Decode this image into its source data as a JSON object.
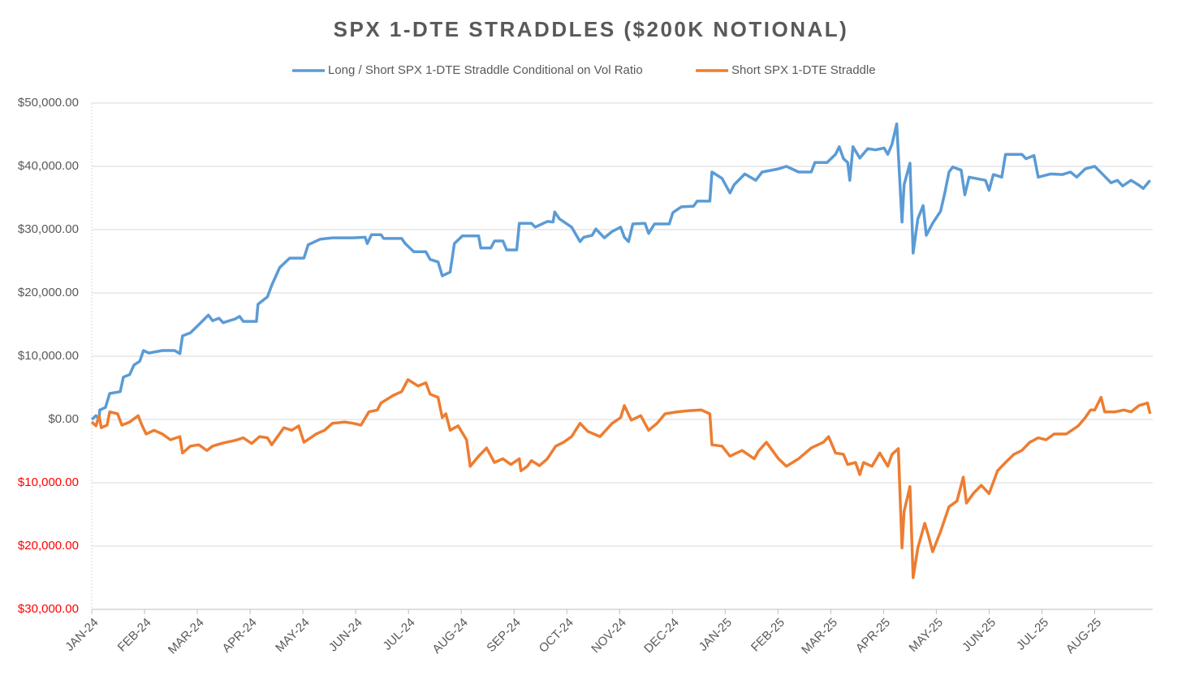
{
  "chart_data": {
    "type": "line",
    "title": "SPX 1-DTE STRADDLES ($200K NOTIONAL)",
    "xlim": [
      0,
      20.1
    ],
    "xticks": [
      {
        "value": 0,
        "label": "JAN-24"
      },
      {
        "value": 1,
        "label": "FEB-24"
      },
      {
        "value": 2,
        "label": "MAR-24"
      },
      {
        "value": 3,
        "label": "APR-24"
      },
      {
        "value": 4,
        "label": "MAY-24"
      },
      {
        "value": 5,
        "label": "JUN-24"
      },
      {
        "value": 6,
        "label": "JUL-24"
      },
      {
        "value": 7,
        "label": "AUG-24"
      },
      {
        "value": 8,
        "label": "SEP-24"
      },
      {
        "value": 9,
        "label": "OCT-24"
      },
      {
        "value": 10,
        "label": "NOV-24"
      },
      {
        "value": 11,
        "label": "DEC-24"
      },
      {
        "value": 12,
        "label": "JAN-25"
      },
      {
        "value": 13,
        "label": "FEB-25"
      },
      {
        "value": 14,
        "label": "MAR-25"
      },
      {
        "value": 15,
        "label": "APR-25"
      },
      {
        "value": 16,
        "label": "MAY-25"
      },
      {
        "value": 17,
        "label": "JUN-25"
      },
      {
        "value": 18,
        "label": "JUL-25"
      },
      {
        "value": 19,
        "label": "AUG-25"
      }
    ],
    "ylim": [
      -30000,
      50000
    ],
    "yticks": [
      {
        "value": 50000,
        "label": "$50,000.00"
      },
      {
        "value": 40000,
        "label": "$40,000.00"
      },
      {
        "value": 30000,
        "label": "$30,000.00"
      },
      {
        "value": 20000,
        "label": "$20,000.00"
      },
      {
        "value": 10000,
        "label": "$10,000.00"
      },
      {
        "value": 0,
        "label": "$0.00"
      },
      {
        "value": -10000,
        "label": "$10,000.00"
      },
      {
        "value": -20000,
        "label": "$20,000.00"
      },
      {
        "value": -30000,
        "label": "$30,000.00"
      }
    ],
    "negative_tick_color": "#ff0000",
    "grid": true,
    "legend": "top",
    "series": [
      {
        "name": "Long / Short SPX 1-DTE Straddle Conditional on Vol Ratio",
        "color": "#5b9bd5",
        "x": [
          0.0,
          0.08,
          0.14,
          0.15,
          0.26,
          0.34,
          0.54,
          0.6,
          0.72,
          0.8,
          0.91,
          0.98,
          1.08,
          1.34,
          1.57,
          1.67,
          1.72,
          1.87,
          2.03,
          2.21,
          2.29,
          2.41,
          2.49,
          2.72,
          2.8,
          2.87,
          3.12,
          3.15,
          3.33,
          3.41,
          3.56,
          3.75,
          4.02,
          4.1,
          4.33,
          4.56,
          4.95,
          5.18,
          5.22,
          5.3,
          5.48,
          5.53,
          5.87,
          5.94,
          6.1,
          6.33,
          6.41,
          6.56,
          6.64,
          6.79,
          6.87,
          7.02,
          7.33,
          7.37,
          7.56,
          7.63,
          7.79,
          7.86,
          8.05,
          8.1,
          8.33,
          8.4,
          8.63,
          8.74,
          8.77,
          8.86,
          9.09,
          9.25,
          9.32,
          9.48,
          9.55,
          9.71,
          9.86,
          10.02,
          10.09,
          10.17,
          10.25,
          10.48,
          10.55,
          10.66,
          10.94,
          11.01,
          11.17,
          11.4,
          11.47,
          11.71,
          11.75,
          11.94,
          12.09,
          12.17,
          12.37,
          12.58,
          12.7,
          13.01,
          13.16,
          13.39,
          13.63,
          13.7,
          13.93,
          14.09,
          14.16,
          14.24,
          14.32,
          14.36,
          14.42,
          14.55,
          14.7,
          14.85,
          15.01,
          15.08,
          15.16,
          15.25,
          15.35,
          15.39,
          15.5,
          15.56,
          15.65,
          15.75,
          15.81,
          15.93,
          16.08,
          16.16,
          16.24,
          16.31,
          16.47,
          16.54,
          16.62,
          16.93,
          17.0,
          17.08,
          17.24,
          17.31,
          17.62,
          17.7,
          17.85,
          17.93,
          18.16,
          18.39,
          18.54,
          18.66,
          18.82,
          19.0,
          19.12,
          19.31,
          19.43,
          19.53,
          19.69,
          19.84,
          19.92,
          20.05
        ],
        "values": [
          0,
          600,
          0,
          1500,
          1900,
          4100,
          4400,
          6700,
          7100,
          8600,
          9200,
          10900,
          10500,
          10900,
          10900,
          10400,
          13200,
          13700,
          15000,
          16500,
          15600,
          16000,
          15300,
          15900,
          16300,
          15500,
          15500,
          18200,
          19400,
          21200,
          24000,
          25500,
          25500,
          27600,
          28500,
          28700,
          28700,
          28800,
          27800,
          29200,
          29200,
          28600,
          28600,
          27800,
          26500,
          26500,
          25300,
          24900,
          22700,
          23300,
          27800,
          29000,
          29000,
          27100,
          27100,
          28200,
          28200,
          26800,
          26800,
          31000,
          31000,
          30400,
          31300,
          31200,
          32800,
          31700,
          30400,
          28100,
          28800,
          29100,
          30100,
          28700,
          29700,
          30400,
          28800,
          28100,
          30900,
          31000,
          29400,
          30900,
          30900,
          32700,
          33600,
          33700,
          34500,
          34500,
          39100,
          38100,
          35800,
          37100,
          38800,
          37800,
          39100,
          39600,
          40000,
          39100,
          39100,
          40600,
          40600,
          41900,
          43100,
          41200,
          40600,
          37800,
          43100,
          41300,
          42800,
          42600,
          42900,
          41900,
          43500,
          46700,
          31200,
          37100,
          40500,
          26300,
          31700,
          33800,
          29100,
          31000,
          32900,
          35800,
          39100,
          39900,
          39400,
          35500,
          38300,
          37800,
          36200,
          38700,
          38300,
          41900,
          41900,
          41200,
          41700,
          38300,
          38800,
          38700,
          39100,
          38300,
          39600,
          40000,
          39000,
          37400,
          37800,
          36900,
          37800,
          37000,
          36500,
          37800
        ]
      },
      {
        "name": "Short SPX 1-DTE Straddle",
        "color": "#ed7d31",
        "x": [
          0.0,
          0.08,
          0.14,
          0.18,
          0.29,
          0.34,
          0.49,
          0.57,
          0.72,
          0.88,
          0.95,
          1.03,
          1.18,
          1.34,
          1.49,
          1.67,
          1.72,
          1.87,
          2.03,
          2.18,
          2.29,
          2.49,
          2.72,
          2.87,
          3.03,
          3.18,
          3.33,
          3.41,
          3.64,
          3.79,
          3.92,
          4.02,
          4.25,
          4.41,
          4.56,
          4.79,
          4.95,
          5.1,
          5.25,
          5.41,
          5.48,
          5.71,
          5.87,
          5.99,
          6.18,
          6.33,
          6.41,
          6.56,
          6.64,
          6.71,
          6.79,
          6.94,
          7.1,
          7.17,
          7.33,
          7.48,
          7.63,
          7.79,
          7.94,
          8.1,
          8.13,
          8.25,
          8.33,
          8.48,
          8.63,
          8.79,
          8.94,
          9.09,
          9.25,
          9.4,
          9.63,
          9.86,
          10.02,
          10.09,
          10.22,
          10.4,
          10.55,
          10.71,
          10.86,
          11.09,
          11.32,
          11.55,
          11.71,
          11.75,
          11.94,
          12.09,
          12.32,
          12.55,
          12.63,
          12.78,
          13.01,
          13.16,
          13.39,
          13.63,
          13.86,
          13.96,
          14.09,
          14.24,
          14.32,
          14.47,
          14.55,
          14.62,
          14.78,
          14.93,
          15.08,
          15.16,
          15.28,
          15.35,
          15.39,
          15.5,
          15.56,
          15.65,
          15.78,
          15.85,
          15.93,
          16.08,
          16.24,
          16.39,
          16.51,
          16.57,
          16.7,
          16.85,
          17.0,
          17.16,
          17.31,
          17.47,
          17.62,
          17.77,
          17.93,
          18.08,
          18.23,
          18.46,
          18.69,
          18.82,
          18.92,
          19.0,
          19.12,
          19.19,
          19.39,
          19.55,
          19.69,
          19.84,
          20.0,
          20.05
        ],
        "values": [
          -400,
          -1000,
          600,
          -1300,
          -900,
          1200,
          900,
          -900,
          -400,
          600,
          -900,
          -2300,
          -1700,
          -2300,
          -3200,
          -2700,
          -5300,
          -4200,
          -4000,
          -4900,
          -4200,
          -3700,
          -3300,
          -2900,
          -3800,
          -2700,
          -2900,
          -4000,
          -1300,
          -1700,
          -1000,
          -3600,
          -2300,
          -1700,
          -600,
          -400,
          -600,
          -900,
          1200,
          1500,
          2600,
          3800,
          4400,
          6300,
          5300,
          5800,
          4000,
          3500,
          300,
          900,
          -1700,
          -1000,
          -3200,
          -7400,
          -5800,
          -4500,
          -6800,
          -6200,
          -7100,
          -6200,
          -8100,
          -7400,
          -6500,
          -7300,
          -6200,
          -4200,
          -3600,
          -2700,
          -600,
          -1900,
          -2700,
          -600,
          300,
          2200,
          -100,
          600,
          -1700,
          -600,
          900,
          1200,
          1400,
          1500,
          900,
          -4000,
          -4200,
          -5800,
          -4900,
          -6200,
          -5000,
          -3600,
          -6200,
          -7400,
          -6200,
          -4500,
          -3600,
          -2700,
          -5300,
          -5500,
          -7100,
          -6800,
          -8700,
          -6800,
          -7400,
          -5300,
          -7400,
          -5500,
          -4600,
          -20300,
          -14500,
          -10600,
          -25000,
          -20300,
          -16400,
          -18300,
          -20900,
          -17700,
          -13800,
          -12900,
          -9100,
          -13200,
          -11700,
          -10400,
          -11700,
          -8100,
          -6800,
          -5500,
          -4900,
          -3600,
          -2900,
          -3200,
          -2300,
          -2300,
          -1000,
          300,
          1500,
          1500,
          3500,
          1200,
          1200,
          1500,
          1200,
          2200,
          2600,
          900
        ]
      }
    ]
  }
}
